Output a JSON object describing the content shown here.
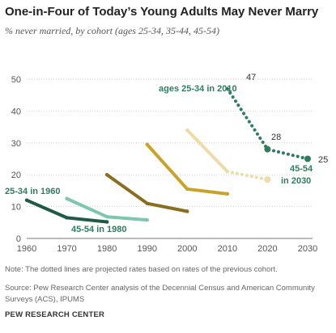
{
  "chart_data": {
    "type": "line",
    "title": "One-in-Four of Today’s Young Adults May Never Marry",
    "subtitle": "% never married, by cohort (ages 25-34, 35-44, 45-54)",
    "xlabel": "",
    "ylabel": "",
    "xlim": [
      1960,
      2030
    ],
    "ylim": [
      0,
      55
    ],
    "x_ticks": [
      1960,
      1970,
      1980,
      1990,
      2000,
      2010,
      2020,
      2030
    ],
    "y_ticks": [
      0,
      10,
      20,
      30,
      40,
      50
    ],
    "grid": "horizontal",
    "series": [
      {
        "color": "#1f5a44",
        "dotted": false,
        "x": [
          1960,
          1970,
          1980
        ],
        "y": [
          12,
          6.5,
          5.2
        ]
      },
      {
        "color": "#7cc7ad",
        "dotted": false,
        "x": [
          1970,
          1980,
          1990
        ],
        "y": [
          12.5,
          6.8,
          5.8
        ]
      },
      {
        "color": "#8a6d1f",
        "dotted": false,
        "x": [
          1980,
          1990,
          2000
        ],
        "y": [
          20,
          11,
          8.5
        ]
      },
      {
        "color": "#c9a227",
        "dotted": false,
        "x": [
          1990,
          2000,
          2010
        ],
        "y": [
          29.5,
          15.5,
          14
        ]
      },
      {
        "color": "#f0dba6",
        "dotted": false,
        "x": [
          2000,
          2010
        ],
        "y": [
          34,
          21
        ]
      },
      {
        "color": "#f0dba6",
        "dotted": true,
        "x": [
          2010,
          2020
        ],
        "y": [
          21,
          18.5
        ]
      },
      {
        "color": "#2e7d5e",
        "dotted": true,
        "x": [
          2010,
          2020,
          2030
        ],
        "y": [
          47,
          28,
          25
        ]
      }
    ],
    "annotations": [
      {
        "text": "25-34 in 1960",
        "color": "#2e7d5e"
      },
      {
        "text": "45-54 in 1980",
        "color": "#2e7d5e"
      },
      {
        "text": "ages 25-34 in 2010",
        "color": "#2e7d5e"
      },
      {
        "text": "45-54",
        "color": "#2e7d5e"
      },
      {
        "text": "in 2030",
        "color": "#2e7d5e"
      },
      {
        "text": "47",
        "color": "#333333"
      },
      {
        "text": "28",
        "color": "#333333"
      },
      {
        "text": "25",
        "color": "#333333"
      }
    ]
  },
  "note": "Note: The dotted lines are projected rates based on rates of the previous cohort.",
  "source": "Source: Pew Research Center analysis of the Decennial Census and American Community Surveys (ACS), IPUMS",
  "brand": "PEW RESEARCH CENTER"
}
